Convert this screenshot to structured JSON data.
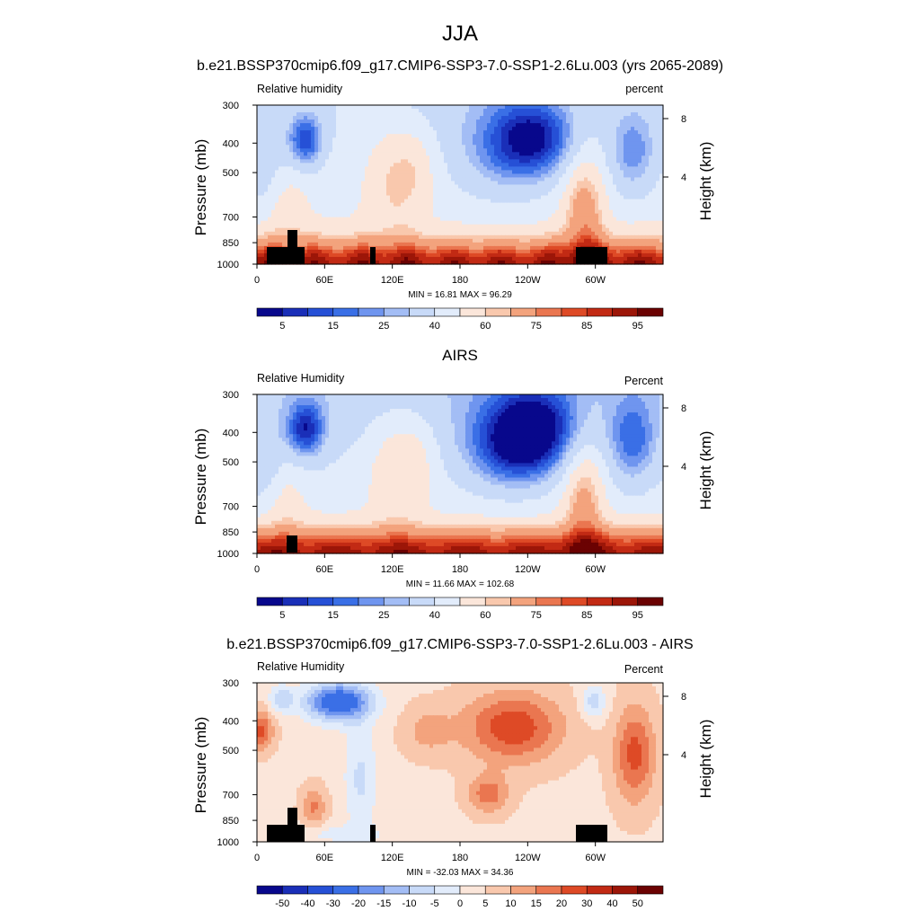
{
  "page_title": "JJA",
  "chart_data": [
    {
      "type": "heatmap",
      "title": "b.e21.BSSP370cmip6.f09_g17.CMIP6-SSP3-7.0-SSP1-2.6Lu.003 (yrs 2065-2089)",
      "left_label": "Relative humidity",
      "right_label": "percent",
      "ylabel": "Pressure (mb)",
      "y2label": "Height (km)",
      "x_ticks": [
        "0",
        "60E",
        "120E",
        "180",
        "120W",
        "60W"
      ],
      "y_ticks": [
        "300",
        "400",
        "500",
        "700",
        "850",
        "1000"
      ],
      "y2_ticks": [
        "8",
        "4"
      ],
      "stats": "MIN = 16.81 MAX = 96.29",
      "colorbar_labels": [
        "5",
        "15",
        "25",
        "40",
        "60",
        "75",
        "85",
        "95"
      ],
      "colorbar_colors": [
        "#08088c",
        "#1a2fb8",
        "#2650d6",
        "#3a6fe6",
        "#6f95ef",
        "#a3bdf5",
        "#c8daf8",
        "#e2ecfb",
        "#fbe6da",
        "#f9c8ad",
        "#f3a37d",
        "#ea7650",
        "#de4a26",
        "#c22a14",
        "#9c1608",
        "#6b0202"
      ],
      "levels": [
        5,
        10,
        15,
        20,
        25,
        30,
        40,
        50,
        60,
        65,
        75,
        80,
        85,
        90,
        95
      ],
      "x_range": [
        0,
        360
      ],
      "y_range": [
        1000,
        300
      ]
    },
    {
      "type": "heatmap",
      "title": "AIRS",
      "left_label": "Relative Humidity",
      "right_label": "Percent",
      "ylabel": "Pressure (mb)",
      "y2label": "Height (km)",
      "x_ticks": [
        "0",
        "60E",
        "120E",
        "180",
        "120W",
        "60W"
      ],
      "y_ticks": [
        "300",
        "400",
        "500",
        "700",
        "850",
        "1000"
      ],
      "y2_ticks": [
        "8",
        "4"
      ],
      "stats": "MIN = 11.66 MAX = 102.68",
      "colorbar_labels": [
        "5",
        "15",
        "25",
        "40",
        "60",
        "75",
        "85",
        "95"
      ],
      "colorbar_colors": [
        "#08088c",
        "#1a2fb8",
        "#2650d6",
        "#3a6fe6",
        "#6f95ef",
        "#a3bdf5",
        "#c8daf8",
        "#e2ecfb",
        "#fbe6da",
        "#f9c8ad",
        "#f3a37d",
        "#ea7650",
        "#de4a26",
        "#c22a14",
        "#9c1608",
        "#6b0202"
      ],
      "levels": [
        5,
        10,
        15,
        20,
        25,
        30,
        40,
        50,
        60,
        65,
        75,
        80,
        85,
        90,
        95
      ],
      "x_range": [
        0,
        360
      ],
      "y_range": [
        1000,
        300
      ]
    },
    {
      "type": "heatmap",
      "title": "b.e21.BSSP370cmip6.f09_g17.CMIP6-SSP3-7.0-SSP1-2.6Lu.003 - AIRS",
      "left_label": "Relative Humidity",
      "right_label": "Percent",
      "ylabel": "Pressure (mb)",
      "y2label": "Height (km)",
      "x_ticks": [
        "0",
        "60E",
        "120E",
        "180",
        "120W",
        "60W"
      ],
      "y_ticks": [
        "300",
        "400",
        "500",
        "700",
        "850",
        "1000"
      ],
      "y2_ticks": [
        "8",
        "4"
      ],
      "stats": "MIN = -32.03 MAX = 34.36",
      "colorbar_labels": [
        "-50",
        "-40",
        "-30",
        "-20",
        "-15",
        "-10",
        "-5",
        "0",
        "5",
        "10",
        "15",
        "20",
        "30",
        "40",
        "50"
      ],
      "colorbar_colors": [
        "#08088c",
        "#1a2fb8",
        "#2650d6",
        "#3a6fe6",
        "#6f95ef",
        "#a3bdf5",
        "#c8daf8",
        "#e2ecfb",
        "#fbe6da",
        "#f9c8ad",
        "#f3a37d",
        "#ea7650",
        "#de4a26",
        "#c22a14",
        "#9c1608",
        "#6b0202"
      ],
      "levels": [
        -50,
        -40,
        -30,
        -20,
        -15,
        -10,
        -5,
        0,
        5,
        10,
        15,
        20,
        30,
        40,
        50
      ],
      "x_range": [
        0,
        360
      ],
      "y_range": [
        1000,
        300
      ]
    }
  ]
}
